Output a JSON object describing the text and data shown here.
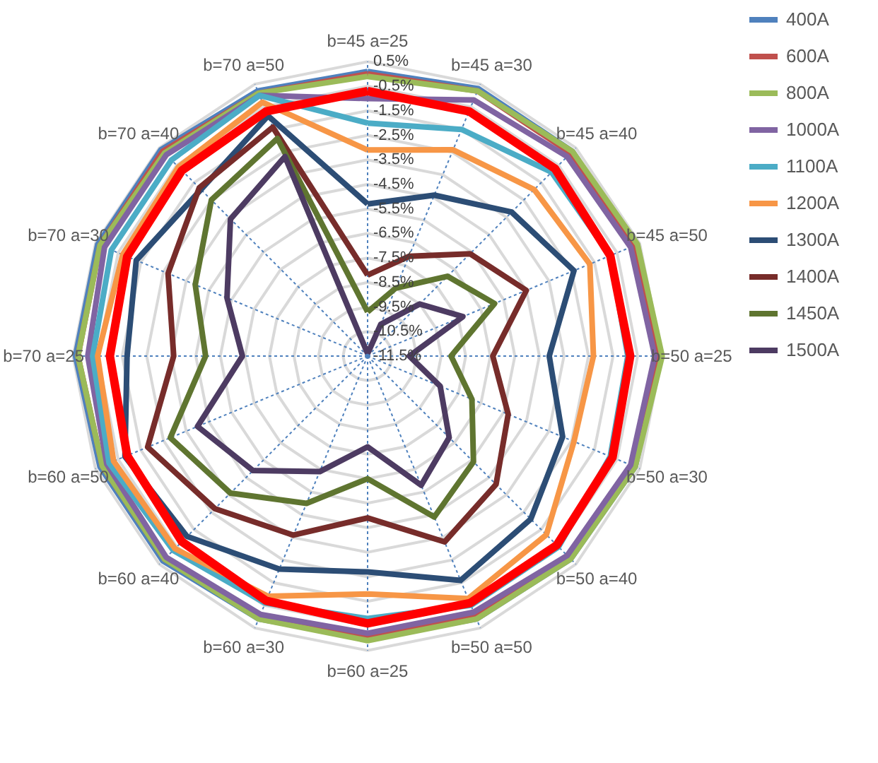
{
  "chart_data": {
    "type": "radar",
    "categories": [
      "b=45 a=25",
      "b=45 a=30",
      "b=45 a=40",
      "b=45 a=50",
      "b=50 a=25",
      "b=50 a=30",
      "b=50 a=40",
      "b=50 a=50",
      "b=60 a=25",
      "b=60 a=30",
      "b=60 a=40",
      "b=60 a=50",
      "b=70 a=25",
      "b=70 a=30",
      "b=70 a=40",
      "b=70 a=50"
    ],
    "ylim": [
      -11.5,
      0.5
    ],
    "yticks": [
      {
        "value": 0.5,
        "label": "0.5%"
      },
      {
        "value": -0.5,
        "label": "-0.5%"
      },
      {
        "value": -1.5,
        "label": "-1.5%"
      },
      {
        "value": -2.5,
        "label": "-2.5%"
      },
      {
        "value": -3.5,
        "label": "-3.5%"
      },
      {
        "value": -4.5,
        "label": "-4.5%"
      },
      {
        "value": -5.5,
        "label": "-5.5%"
      },
      {
        "value": -6.5,
        "label": "-6.5%"
      },
      {
        "value": -7.5,
        "label": "-7.5%"
      },
      {
        "value": -8.5,
        "label": "-8.5%"
      },
      {
        "value": -9.5,
        "label": "-9.5%"
      },
      {
        "value": -10.5,
        "label": "-10.5%"
      },
      {
        "value": -11.5,
        "label": "-11.5%"
      }
    ],
    "grid": true,
    "legend": "right",
    "marker": "none",
    "line_style": "solid",
    "series": [
      {
        "name": "400A",
        "color": "#4f81bd",
        "values": [
          0.1,
          0.3,
          0.3,
          0.3,
          0.4,
          0.3,
          0.2,
          0.1,
          0.0,
          0.1,
          0.3,
          0.3,
          0.4,
          0.4,
          0.4,
          0.2
        ]
      },
      {
        "name": "600A",
        "color": "#c0504d",
        "values": [
          0.0,
          0.2,
          0.2,
          0.2,
          0.3,
          0.2,
          0.1,
          0.0,
          -0.1,
          0.0,
          0.2,
          0.2,
          0.3,
          0.3,
          0.3,
          0.1
        ]
      },
      {
        "name": "800A",
        "color": "#9bbb59",
        "values": [
          -0.1,
          0.2,
          0.3,
          0.4,
          0.5,
          0.3,
          0.2,
          0.1,
          0.1,
          0.1,
          0.2,
          0.2,
          0.3,
          0.3,
          0.2,
          0.1
        ]
      },
      {
        "name": "1000A",
        "color": "#8064a2",
        "values": [
          -1.0,
          -0.2,
          0.0,
          0.1,
          0.2,
          0.1,
          0.0,
          -0.2,
          -0.2,
          -0.1,
          0.1,
          0.0,
          -0.1,
          0.1,
          0.1,
          0.0
        ]
      },
      {
        "name": "1100A",
        "color": "#4bacc6",
        "values": [
          -2.0,
          -1.5,
          -0.9,
          -0.8,
          -0.9,
          -0.8,
          -0.5,
          -0.5,
          -0.8,
          -0.6,
          -0.3,
          -0.1,
          -0.3,
          -0.2,
          -0.2,
          0.0
        ]
      },
      {
        "name": "1200A",
        "color": "#f79646",
        "values": [
          -3.1,
          -2.4,
          -1.9,
          -1.7,
          -2.3,
          -2.4,
          -1.2,
          -0.8,
          -1.8,
          -0.9,
          -0.4,
          -0.3,
          -0.5,
          -0.7,
          -0.6,
          -0.3
        ]
      },
      {
        "name": "1300A",
        "color": "#2c4d75",
        "values": [
          -5.3,
          -4.4,
          -3.2,
          -2.4,
          -4.1,
          -2.9,
          -2.1,
          -1.6,
          -2.7,
          -2.1,
          -1.1,
          -0.8,
          -1.7,
          -1.3,
          -1.9,
          -0.9
        ]
      },
      {
        "name": "1400A",
        "color": "#772c2a",
        "values": [
          -8.2,
          -7.1,
          -5.6,
          -4.5,
          -6.4,
          -5.3,
          -4.1,
          -3.3,
          -4.9,
          -3.6,
          -2.7,
          -1.8,
          -3.6,
          -2.7,
          -1.8,
          -1.4
        ]
      },
      {
        "name": "1450A",
        "color": "#5f7530",
        "values": [
          -9.7,
          -8.5,
          -6.9,
          -5.9,
          -8.1,
          -6.9,
          -5.4,
          -4.4,
          -6.5,
          -5.0,
          -3.6,
          -2.8,
          -4.9,
          -3.9,
          -2.5,
          -1.9
        ]
      },
      {
        "name": "1500A",
        "color": "#4d3b62",
        "values": [
          -11.4,
          -10.1,
          -8.5,
          -7.3,
          -9.8,
          -8.3,
          -6.8,
          -5.8,
          -7.8,
          -6.4,
          -4.9,
          -4.0,
          -6.4,
          -5.3,
          -3.6,
          -2.7
        ]
      },
      {
        "name": null,
        "color": "#ff0000",
        "values": [
          -0.7,
          -0.7,
          -0.7,
          -0.8,
          -0.8,
          -0.7,
          -0.6,
          -0.6,
          -0.6,
          -0.7,
          -0.8,
          -0.9,
          -1.0,
          -0.9,
          -0.8,
          -0.7
        ]
      }
    ]
  }
}
